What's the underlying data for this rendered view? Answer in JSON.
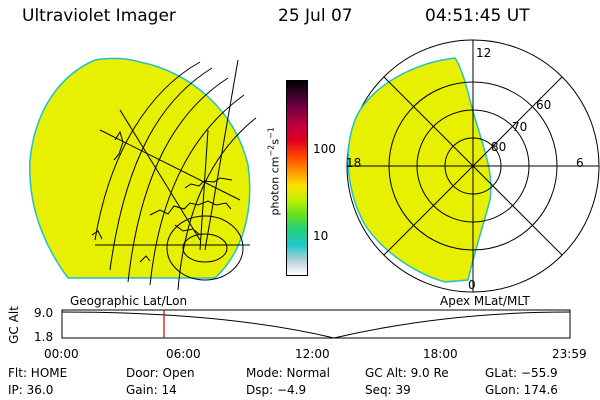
{
  "header": {
    "instrument": "Ultraviolet Imager",
    "date": "25 Jul 07",
    "time": "04:51:45 UT"
  },
  "colors": {
    "aurora_fill": "#e6f000",
    "limb": "#22c0c8",
    "line": "#000000",
    "marker": "#cc0000"
  },
  "geo_panel": {
    "label": "Geographic Lat/Lon"
  },
  "apex_panel": {
    "label": "Apex MLat/MLT",
    "mlt_labels": [
      "12",
      "18",
      "6",
      "0"
    ],
    "lat_labels": [
      "60",
      "70",
      "80"
    ]
  },
  "colorbar": {
    "unit_text": "photon cm",
    "unit_exp1": "−2",
    "unit_s": "s",
    "unit_exp2": "−1",
    "tick_100": "100",
    "tick_10": "10",
    "stops": [
      "#ffffff",
      "#b0d0d8",
      "#20c8c8",
      "#20d080",
      "#60e020",
      "#c0f000",
      "#ffe000",
      "#ff9000",
      "#ff4000",
      "#e00020",
      "#c00040",
      "#800040",
      "#400030",
      "#000000"
    ]
  },
  "timeline": {
    "axis_label": "GC Alt",
    "y_top": "9.0",
    "y_bottom": "1.8",
    "x_ticks": [
      "00:00",
      "06:00",
      "12:00",
      "18:00",
      "23:59"
    ],
    "marker_time": "04:51:45"
  },
  "status": {
    "flt": "Flt: HOME",
    "ip": "IP: 36.0",
    "door": "Door: Open",
    "gain": "Gain: 14",
    "mode": "Mode: Normal",
    "dsp": "Dsp:   −4.9",
    "gcalt": "GC Alt: 9.0 Re",
    "seq": "Seq: 39",
    "glat": "GLat: −55.9",
    "glon": "GLon: 174.6"
  }
}
